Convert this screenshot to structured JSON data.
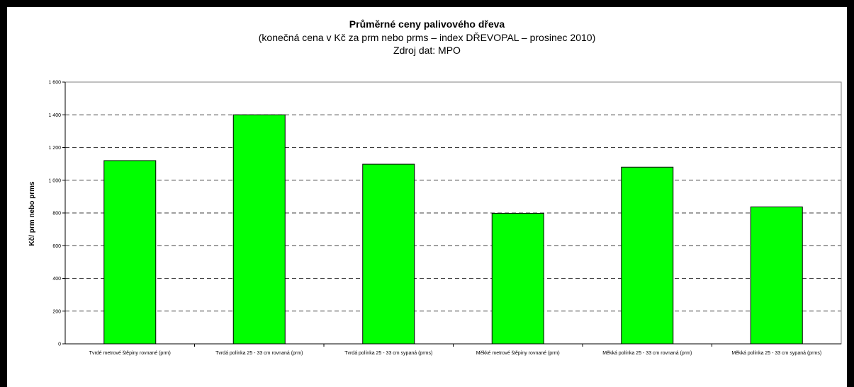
{
  "chart_data": {
    "type": "bar",
    "title": "Průměrné ceny palivového dřeva",
    "subtitle": "(konečná cena v Kč za prm nebo prms – index DŘEVOPAL – prosinec 2010)",
    "source": "Zdroj dat: MPO",
    "xlabel": "",
    "ylabel": "Kč/ prm nebo prms",
    "ylim": [
      0,
      1600
    ],
    "yticks": [
      0,
      200,
      400,
      600,
      800,
      1000,
      1200,
      1400,
      1600
    ],
    "ytick_labels": [
      "0",
      "200",
      "400",
      "600",
      "800",
      "1 000",
      "1 200",
      "1 400",
      "1 600"
    ],
    "grid": "horizontal dashed",
    "categories": [
      "Tvrdé metrové štěpiny rovnané (prm)",
      "Tvrdá polínka 25 - 33 cm rovnaná (prm)",
      "Tvrdá polínka 25 - 33 cm sypaná (prms)",
      "Měkké metrové štěpiny rovnané (prm)",
      "Měkká polínka 25 - 33 cm rovnaná (prm)",
      "Měkká polínka 25 - 33 cm sypaná (prms)"
    ],
    "values": [
      1120,
      1400,
      1098,
      798,
      1080,
      837
    ],
    "bar_color": "#00ff00"
  }
}
